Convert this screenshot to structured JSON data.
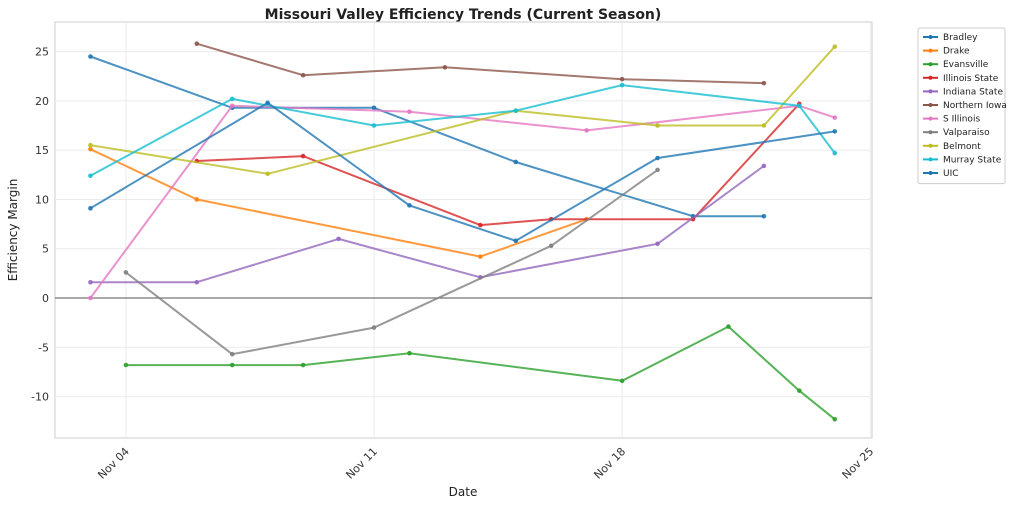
{
  "chart_data": {
    "type": "line",
    "title": "Missouri Valley Efficiency Trends (Current Season)",
    "xlabel": "Date",
    "ylabel": "Efficiency Margin",
    "x_unit": "day of November",
    "xlim": [
      2.0,
      25.05
    ],
    "ylim": [
      -14.2,
      28
    ],
    "x_ticks": [
      {
        "value": 4,
        "label": "Nov 04"
      },
      {
        "value": 11,
        "label": "Nov 11"
      },
      {
        "value": 18,
        "label": "Nov 18"
      },
      {
        "value": 25,
        "label": "Nov 25"
      }
    ],
    "y_ticks": [
      -10,
      -5,
      0,
      5,
      10,
      15,
      20,
      25
    ],
    "grid": true,
    "zero_line": true,
    "legend_position": "outside-top-right",
    "series": [
      {
        "name": "Bradley",
        "color": "#1f77b4",
        "x": [
          3,
          7,
          11,
          15,
          20,
          22
        ],
        "y": [
          24.5,
          19.3,
          19.3,
          13.8,
          8.3,
          8.3
        ]
      },
      {
        "name": "Drake",
        "color": "#ff7f0e",
        "x": [
          3,
          6,
          14,
          17
        ],
        "y": [
          15.1,
          10.0,
          4.2,
          8.0
        ]
      },
      {
        "name": "Evansville",
        "color": "#2ca02c",
        "x": [
          4,
          7,
          9,
          12,
          18,
          21,
          23,
          24
        ],
        "y": [
          -6.8,
          -6.8,
          -6.8,
          -5.6,
          -8.4,
          -2.9,
          -9.4,
          -12.3
        ]
      },
      {
        "name": "Illinois State",
        "color": "#d62728",
        "x": [
          6,
          9,
          14,
          16,
          20,
          23
        ],
        "y": [
          13.9,
          14.4,
          7.4,
          8.0,
          8.0,
          19.7
        ]
      },
      {
        "name": "Indiana State",
        "color": "#9467bd",
        "x": [
          3,
          6,
          10,
          14,
          19,
          22
        ],
        "y": [
          1.6,
          1.6,
          6.0,
          2.1,
          5.5,
          13.4
        ]
      },
      {
        "name": "Northern Iowa",
        "color": "#8c564b",
        "x": [
          6,
          9,
          13,
          18,
          22
        ],
        "y": [
          25.8,
          22.6,
          23.4,
          22.2,
          21.8
        ]
      },
      {
        "name": "S Illinois",
        "color": "#e377c2",
        "x": [
          3,
          7,
          12,
          17,
          23,
          24
        ],
        "y": [
          0.0,
          19.5,
          18.9,
          17.0,
          19.5,
          18.3
        ]
      },
      {
        "name": "Valparaiso",
        "color": "#7f7f7f",
        "x": [
          4,
          7,
          11,
          16,
          19
        ],
        "y": [
          2.6,
          -5.7,
          -3.0,
          5.3,
          13.0
        ]
      },
      {
        "name": "Belmont",
        "color": "#bcbd22",
        "x": [
          3,
          8,
          15,
          19,
          22,
          24
        ],
        "y": [
          15.5,
          12.6,
          19.0,
          17.5,
          17.5,
          25.5
        ]
      },
      {
        "name": "Murray State",
        "color": "#17becf",
        "x": [
          3,
          7,
          11,
          15,
          18,
          23,
          24
        ],
        "y": [
          12.4,
          20.2,
          17.5,
          19.0,
          21.6,
          19.5,
          14.7
        ]
      },
      {
        "name": "UIC",
        "color": "#1f77b4",
        "x": [
          3,
          8,
          12,
          15,
          19,
          24
        ],
        "y": [
          9.1,
          19.8,
          9.4,
          5.8,
          14.2,
          16.9
        ]
      }
    ]
  }
}
